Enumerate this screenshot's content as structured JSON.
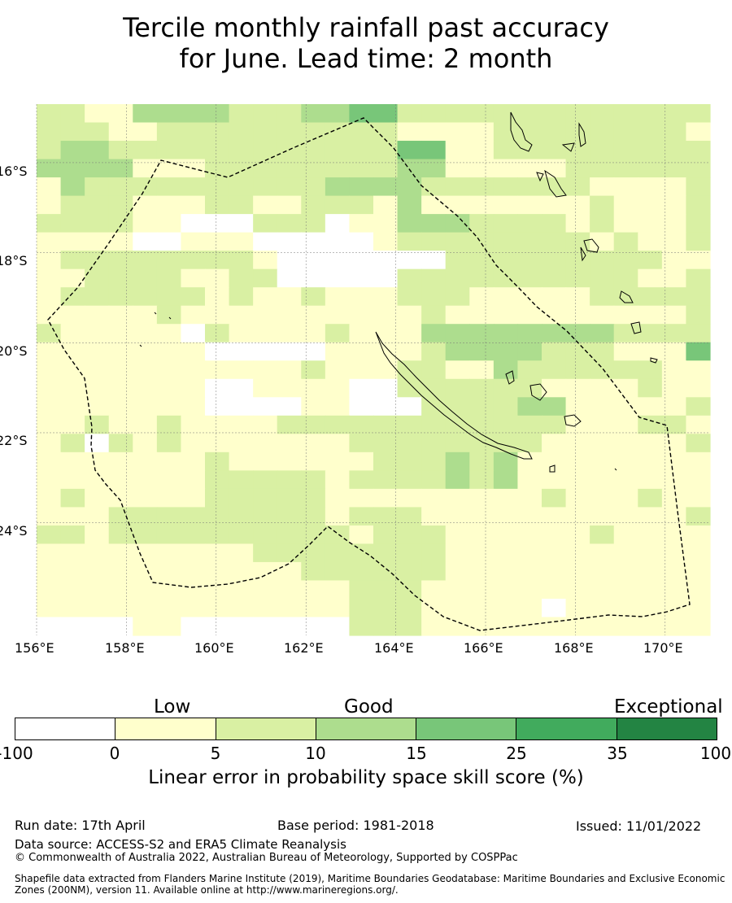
{
  "title_line1": "Tercile monthly rainfall past accuracy",
  "title_line2": "for June. Lead time: 2 month",
  "map": {
    "lon_range": [
      156,
      171
    ],
    "lat_range": [
      -26.5,
      -14.7
    ],
    "x_ticks": [
      "156°E",
      "158°E",
      "160°E",
      "162°E",
      "164°E",
      "166°E",
      "168°E",
      "170°E"
    ],
    "y_ticks": [
      "16°S",
      "18°S",
      "20°S",
      "22°S",
      "24°S"
    ],
    "gridlines": true,
    "eez_boundary": "dashed black outline",
    "colors": [
      "#ffffff",
      "#ffffcc",
      "#d9f0a3",
      "#addd8e",
      "#78c679",
      "#41ab5d",
      "#238443"
    ],
    "skill_grid_rows": [
      "2211333322233442222222222222",
      "2221122222222221111222222221",
      "2332222222222224411222222222",
      "3333111222222223311111222222",
      "1322222222223333222222211112",
      "1222111221122213111111121112",
      "2222110002220113332222121112",
      "1111001110000012222222212112",
      "1222222221000000022222222211",
      "1122221122000002222222222112",
      "1222222121121112221111122222",
      "1111121111111111211111111112",
      "2111110211112111333333332222",
      "1111111000001111233332221114",
      "1111111111121112211322222211",
      "1111111001111002222221111211",
      "1111111000011000222233111112",
      "1121121111222222222222111221",
      "1202121111111222222221111112",
      "1111111211111122232311111111",
      "1111111222221222232311111111",
      "1211111222221111111112111211",
      "1112222222221222111111111112",
      "2212222222222122211111121111",
      "1111111112222222211111111111",
      "1111111111122222211111111111",
      "1111111111111222111111111111",
      "1111111111111222111110111111",
      "0000110000000222111111111111"
    ]
  },
  "categories": {
    "low": "Low",
    "good": "Good",
    "exceptional": "Exceptional"
  },
  "colorbar": {
    "tick_labels": [
      "-100",
      "0",
      "5",
      "10",
      "15",
      "25",
      "35",
      "100"
    ],
    "label": "Linear error in probability space skill score (%)"
  },
  "footer": {
    "run_date": "Run date: 17th April",
    "base_period": "Base period: 1981-2018",
    "issued": "Issued: 11/01/2022",
    "data_source": "Data source: ACCESS-S2 and ERA5 Climate Reanalysis",
    "copyright": "© Commonwealth of Australia 2022, Australian Bureau of Meteorology, Supported by COSPPac",
    "shapefile": "Shapefile data extracted from Flanders Marine Institute (2019), Maritime Boundaries Geodatabase: Maritime Boundaries and Exclusive Economic Zones (200NM), version 11. Available online at http://www.marineregions.org/."
  }
}
